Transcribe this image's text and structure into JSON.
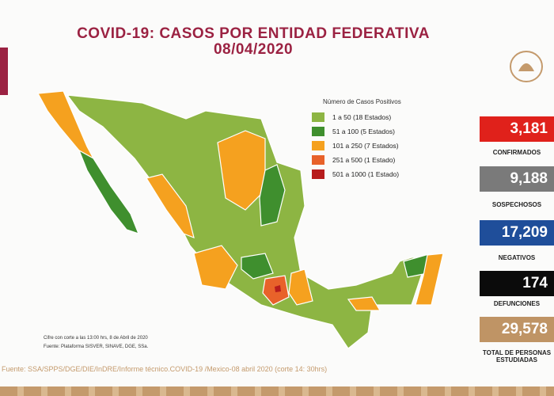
{
  "header": {
    "title": "COVID-19: CASOS POR ENTIDAD FEDERATIVA",
    "date": "08/04/2020"
  },
  "legend": {
    "title": "Número de Casos Positivos",
    "items": [
      "1 a 50 (18 Estados)",
      "51 a 100 (5 Estados)",
      "101 a 250 (7 Estados)",
      "251 a 500 (1 Estado)",
      "501 a 1000 (1 Estado)"
    ]
  },
  "stats": [
    {
      "value": "3,181",
      "label": "CONFIRMADOS"
    },
    {
      "value": "9,188",
      "label": "SOSPECHOSOS"
    },
    {
      "value": "17,209",
      "label": "NEGATIVOS"
    },
    {
      "value": "174",
      "label": "DEFUNCIONES"
    },
    {
      "value": "29,578",
      "label": "TOTAL DE PERSONAS ESTUDIADAS"
    }
  ],
  "notes": [
    "Cifre con corte a las 13:00 hrs, 8 de Abril de 2020",
    "Fuente: Plataforma SISVER, SINAVE, DGE, SSa."
  ],
  "source": "Fuente: SSA/SPPS/DGE/DIE/InDRE/Informe técnico.COVID-19 /Mexico-08 abril 2020 (corte 14: 30hrs)"
}
